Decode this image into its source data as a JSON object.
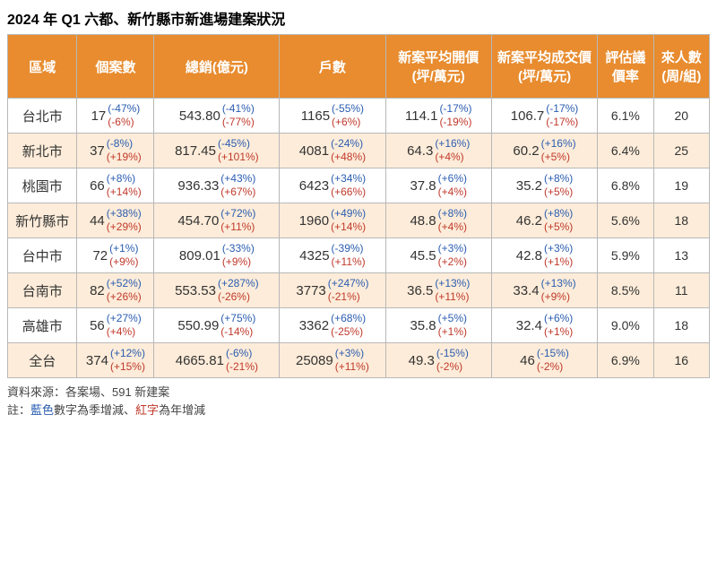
{
  "title": "2024 年 Q1 六都、新竹縣市新進場建案狀況",
  "columns": [
    "區域",
    "個案數",
    "總銷(億元)",
    "戶數",
    "新案平均開價(坪/萬元)",
    "新案平均成交價(坪/萬元)",
    "評估議價率",
    "來人數(周/組)"
  ],
  "rows": [
    {
      "region": "台北市",
      "cases": {
        "v": "17",
        "q": "(-47%)",
        "y": "(-6%)"
      },
      "sales": {
        "v": "543.80",
        "q": "(-41%)",
        "y": "(-77%)"
      },
      "units": {
        "v": "1165",
        "q": "(-55%)",
        "y": "(+6%)"
      },
      "open": {
        "v": "114.1",
        "q": "(-17%)",
        "y": "(-19%)"
      },
      "deal": {
        "v": "106.7",
        "q": "(-17%)",
        "y": "(-17%)"
      },
      "rate": "6.1%",
      "visitors": "20"
    },
    {
      "region": "新北市",
      "cases": {
        "v": "37",
        "q": "(-8%)",
        "y": "(+19%)"
      },
      "sales": {
        "v": "817.45",
        "q": "(-45%)",
        "y": "(+101%)"
      },
      "units": {
        "v": "4081",
        "q": "(-24%)",
        "y": "(+48%)"
      },
      "open": {
        "v": "64.3",
        "q": "(+16%)",
        "y": "(+4%)"
      },
      "deal": {
        "v": "60.2",
        "q": "(+16%)",
        "y": "(+5%)"
      },
      "rate": "6.4%",
      "visitors": "25"
    },
    {
      "region": "桃園市",
      "cases": {
        "v": "66",
        "q": "(+8%)",
        "y": "(+14%)"
      },
      "sales": {
        "v": "936.33",
        "q": "(+43%)",
        "y": "(+67%)"
      },
      "units": {
        "v": "6423",
        "q": "(+34%)",
        "y": "(+66%)"
      },
      "open": {
        "v": "37.8",
        "q": "(+6%)",
        "y": "(+4%)"
      },
      "deal": {
        "v": "35.2",
        "q": "(+8%)",
        "y": "(+5%)"
      },
      "rate": "6.8%",
      "visitors": "19"
    },
    {
      "region": "新竹縣市",
      "cases": {
        "v": "44",
        "q": "(+38%)",
        "y": "(+29%)"
      },
      "sales": {
        "v": "454.70",
        "q": "(+72%)",
        "y": "(+11%)"
      },
      "units": {
        "v": "1960",
        "q": "(+49%)",
        "y": "(+14%)"
      },
      "open": {
        "v": "48.8",
        "q": "(+8%)",
        "y": "(+4%)"
      },
      "deal": {
        "v": "46.2",
        "q": "(+8%)",
        "y": "(+5%)"
      },
      "rate": "5.6%",
      "visitors": "18"
    },
    {
      "region": "台中市",
      "cases": {
        "v": "72",
        "q": "(+1%)",
        "y": "(+9%)"
      },
      "sales": {
        "v": "809.01",
        "q": "(-33%)",
        "y": "(+9%)"
      },
      "units": {
        "v": "4325",
        "q": "(-39%)",
        "y": "(+11%)"
      },
      "open": {
        "v": "45.5",
        "q": "(+3%)",
        "y": "(+2%)"
      },
      "deal": {
        "v": "42.8",
        "q": "(+3%)",
        "y": "(+1%)"
      },
      "rate": "5.9%",
      "visitors": "13"
    },
    {
      "region": "台南市",
      "cases": {
        "v": "82",
        "q": "(+52%)",
        "y": "(+26%)"
      },
      "sales": {
        "v": "553.53",
        "q": "(+287%)",
        "y": "(-26%)"
      },
      "units": {
        "v": "3773",
        "q": "(+247%)",
        "y": "(-21%)"
      },
      "open": {
        "v": "36.5",
        "q": "(+13%)",
        "y": "(+11%)"
      },
      "deal": {
        "v": "33.4",
        "q": "(+13%)",
        "y": "(+9%)"
      },
      "rate": "8.5%",
      "visitors": "11"
    },
    {
      "region": "高雄市",
      "cases": {
        "v": "56",
        "q": "(+27%)",
        "y": "(+4%)"
      },
      "sales": {
        "v": "550.99",
        "q": "(+75%)",
        "y": "(-14%)"
      },
      "units": {
        "v": "3362",
        "q": "(+68%)",
        "y": "(-25%)"
      },
      "open": {
        "v": "35.8",
        "q": "(+5%)",
        "y": "(+1%)"
      },
      "deal": {
        "v": "32.4",
        "q": "(+6%)",
        "y": "(+1%)"
      },
      "rate": "9.0%",
      "visitors": "18"
    },
    {
      "region": "全台",
      "cases": {
        "v": "374",
        "q": "(+12%)",
        "y": "(+15%)"
      },
      "sales": {
        "v": "4665.81",
        "q": "(-6%)",
        "y": "(-21%)"
      },
      "units": {
        "v": "25089",
        "q": "(+3%)",
        "y": "(+11%)"
      },
      "open": {
        "v": "49.3",
        "q": "(-15%)",
        "y": "(-2%)"
      },
      "deal": {
        "v": "46",
        "q": "(-15%)",
        "y": "(-2%)"
      },
      "rate": "6.9%",
      "visitors": "16"
    }
  ],
  "footer_source": "資料來源：各案場、591 新建案",
  "footer_note_prefix": "註：",
  "footer_blue": "藍色",
  "footer_mid1": "數字為季增減、",
  "footer_red": "紅字",
  "footer_mid2": "為年增減",
  "colors": {
    "header_bg": "#e88c2f",
    "header_fg": "#ffffff",
    "alt_row_bg": "#fdecd9",
    "border": "#b8b8b8",
    "quarter": "#2a5db0",
    "year": "#c0392b"
  }
}
